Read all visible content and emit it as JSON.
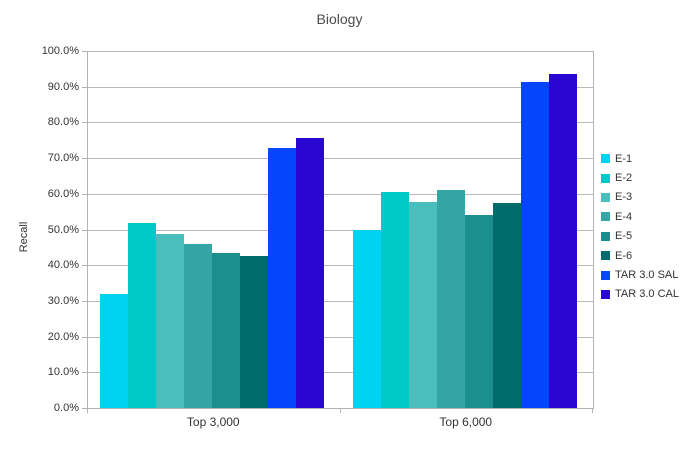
{
  "title": "Biology",
  "y_axis_label": "Recall",
  "chart_data": {
    "type": "bar",
    "title": "Biology",
    "xlabel": "",
    "ylabel": "Recall",
    "categories": [
      "Top 3,000",
      "Top 6,000"
    ],
    "series": [
      {
        "name": "E-1",
        "color": "#00d3f2",
        "values": [
          32.0,
          49.9
        ]
      },
      {
        "name": "E-2",
        "color": "#00c9c9",
        "values": [
          51.9,
          60.5
        ]
      },
      {
        "name": "E-3",
        "color": "#4abdbd",
        "values": [
          48.6,
          57.8
        ]
      },
      {
        "name": "E-4",
        "color": "#36a5a5",
        "values": [
          45.8,
          61.0
        ]
      },
      {
        "name": "E-5",
        "color": "#1d8e8e",
        "values": [
          43.5,
          54.0
        ]
      },
      {
        "name": "E-6",
        "color": "#006c6c",
        "values": [
          42.6,
          57.5
        ]
      },
      {
        "name": "TAR 3.0 SAL",
        "color": "#0546fb",
        "values": [
          72.7,
          91.4
        ]
      },
      {
        "name": "TAR 3.0 CAL",
        "color": "#2a06d2",
        "values": [
          75.6,
          93.6
        ]
      }
    ],
    "ylim": [
      0,
      100
    ],
    "y_tick_step": 10,
    "y_tick_format": "0.0%",
    "grid": true,
    "legend_position": "right"
  },
  "colors": {
    "background": "#ffffff",
    "grid": "#b9b9b9",
    "axis": "#b3b3b3",
    "text": "#333333",
    "title_text": "#4c4c4c"
  }
}
